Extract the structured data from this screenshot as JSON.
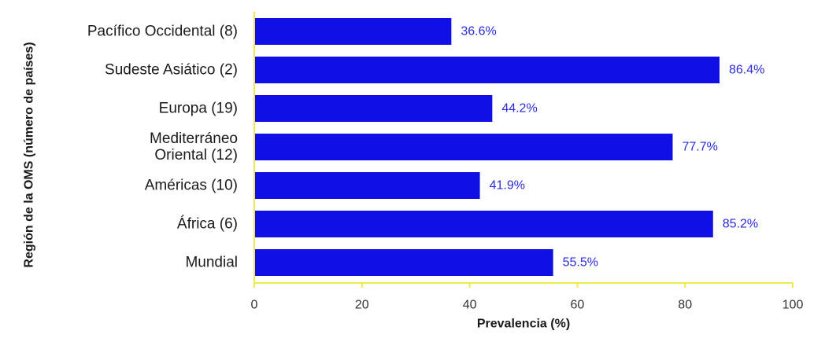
{
  "chart_data": {
    "type": "bar",
    "orientation": "horizontal",
    "title": "",
    "xlabel": "Prevalencia (%)",
    "ylabel": "Región de la OMS (número de países)",
    "categories": [
      [
        "Pacífico Occidental (8)"
      ],
      [
        "Sudeste Asiático (2)"
      ],
      [
        "Europa (19)"
      ],
      [
        "Mediterráneo",
        "Oriental (12)"
      ],
      [
        "Américas (10)"
      ],
      [
        "África (6)"
      ],
      [
        "Mundial"
      ]
    ],
    "values": [
      36.6,
      86.4,
      44.2,
      77.7,
      41.9,
      85.2,
      55.5
    ],
    "value_labels": [
      "36.6%",
      "86.4%",
      "44.2%",
      "77.7%",
      "41.9%",
      "85.2%",
      "55.5%"
    ],
    "xlim": [
      0,
      100
    ],
    "xticks": [
      0,
      20,
      40,
      60,
      80,
      100
    ],
    "xtick_labels": [
      "0",
      "20",
      "40",
      "60",
      "80",
      "100"
    ],
    "grid": false,
    "colors": {
      "bar": "#1010e6",
      "value_label": "#2a2ad8",
      "axis": "#f0ea48"
    }
  }
}
